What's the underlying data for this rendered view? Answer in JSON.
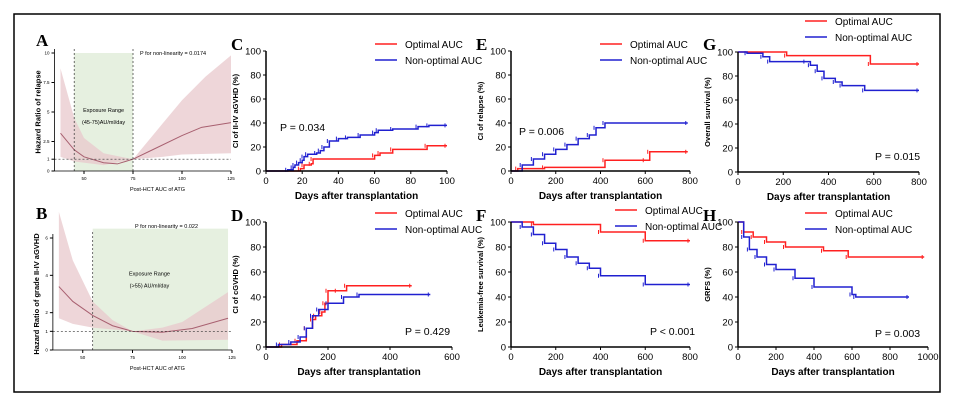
{
  "colors": {
    "optimal": "#ff2020",
    "nonoptimal": "#2020d0",
    "curve": "#a86070",
    "band": "#e8c8cc",
    "exposure": "#e6f0e0"
  },
  "chart_data": [
    {
      "panel": "A",
      "type": "line",
      "ylabel": "Hazard Ratio of relapse",
      "xlabel": "Post-HCT AUC of ATG",
      "annotation": "P for non-linearity = 0.0174",
      "range_title": "Exposure Range",
      "range_text": "(45-75)AU/ml/day",
      "exposure_range": [
        45,
        75
      ],
      "ref_lines_x": [
        45,
        75
      ],
      "ref_line_y": 1,
      "xticks": [
        50,
        75,
        100,
        125
      ],
      "yticks": [
        0,
        1,
        2.5,
        5,
        7.5,
        10
      ],
      "ylim": [
        0,
        10
      ],
      "xlim": [
        25,
        125
      ],
      "hr": [
        [
          38,
          3.2
        ],
        [
          45,
          1.8
        ],
        [
          50,
          1.2
        ],
        [
          60,
          0.7
        ],
        [
          67,
          0.6
        ],
        [
          75,
          1
        ],
        [
          85,
          1.8
        ],
        [
          100,
          3
        ],
        [
          110,
          3.7
        ],
        [
          125,
          4.1
        ]
      ],
      "upper": [
        [
          38,
          8.7
        ],
        [
          45,
          4.5
        ],
        [
          50,
          2.8
        ],
        [
          60,
          1.5
        ],
        [
          75,
          1
        ],
        [
          90,
          4
        ],
        [
          100,
          6
        ],
        [
          112,
          8
        ],
        [
          125,
          9.8
        ]
      ],
      "lower": [
        [
          38,
          1.2
        ],
        [
          45,
          0.8
        ],
        [
          60,
          0.5
        ],
        [
          75,
          1
        ],
        [
          90,
          1.2
        ],
        [
          100,
          1.4
        ],
        [
          125,
          1.5
        ]
      ]
    },
    {
      "panel": "B",
      "type": "line",
      "ylabel": "Hazard Ratio of grade II-IV aGVHD",
      "xlabel": "Post-HCT AUC of ATG",
      "annotation": "P for non-linearity = 0.022",
      "range_title": "Exposure Range",
      "range_text": "(>55) AU/ml/day",
      "exposure_range": [
        55,
        123
      ],
      "ref_lines_x": [
        55
      ],
      "ref_line_y": 1,
      "xticks": [
        50,
        75,
        100,
        125
      ],
      "yticks": [
        0,
        1,
        2,
        4,
        6
      ],
      "ylim": [
        0,
        6
      ],
      "xlim": [
        25,
        125
      ],
      "hr": [
        [
          38,
          3.4
        ],
        [
          45,
          2.6
        ],
        [
          55,
          1.85
        ],
        [
          65,
          1.3
        ],
        [
          75,
          1
        ],
        [
          90,
          0.95
        ],
        [
          105,
          1.15
        ],
        [
          123,
          1.7
        ]
      ],
      "upper": [
        [
          38,
          7.4
        ],
        [
          45,
          4.8
        ],
        [
          55,
          2.6
        ],
        [
          65,
          1.6
        ],
        [
          75,
          1
        ],
        [
          90,
          1.2
        ],
        [
          100,
          1.5
        ],
        [
          123,
          3.1
        ]
      ],
      "lower": [
        [
          38,
          1.7
        ],
        [
          45,
          1.4
        ],
        [
          55,
          1.2
        ],
        [
          75,
          1
        ],
        [
          90,
          0.5
        ],
        [
          123,
          0.55
        ]
      ]
    },
    {
      "panel": "C",
      "type": "line",
      "ylabel": "CI of II-IV aGVHD (%)",
      "xlabel": "Days after transplantation",
      "p_value": "P = 0.034",
      "xticks": [
        0,
        20,
        40,
        60,
        80,
        100
      ],
      "yticks": [
        0,
        20,
        40,
        60,
        80,
        100
      ],
      "xlim": [
        0,
        100
      ],
      "ylim": [
        0,
        100
      ],
      "series": [
        {
          "name": "Optimal AUC",
          "values": [
            [
              0,
              0
            ],
            [
              19,
              2
            ],
            [
              21,
              5
            ],
            [
              25,
              6
            ],
            [
              26,
              10
            ],
            [
              60,
              13
            ],
            [
              63,
              15
            ],
            [
              70,
              18
            ],
            [
              89,
              21
            ],
            [
              100,
              21
            ]
          ]
        },
        {
          "name": "Non-optimal AUC",
          "values": [
            [
              0,
              0
            ],
            [
              12,
              1
            ],
            [
              15,
              3
            ],
            [
              16,
              5
            ],
            [
              18,
              7
            ],
            [
              20,
              9
            ],
            [
              21,
              12
            ],
            [
              23,
              14
            ],
            [
              28,
              15
            ],
            [
              30,
              17
            ],
            [
              32,
              20
            ],
            [
              35,
              25
            ],
            [
              40,
              27
            ],
            [
              45,
              28
            ],
            [
              52,
              30
            ],
            [
              60,
              32
            ],
            [
              62,
              34
            ],
            [
              70,
              35
            ],
            [
              84,
              37
            ],
            [
              90,
              38
            ],
            [
              100,
              38
            ]
          ]
        }
      ]
    },
    {
      "panel": "D",
      "type": "line",
      "ylabel": "CI of cGVHD (%)",
      "xlabel": "Days after transplantation",
      "p_value": "P = 0.429",
      "xticks": [
        0,
        200,
        400,
        600
      ],
      "yticks": [
        0,
        20,
        40,
        60,
        80,
        100
      ],
      "xlim": [
        0,
        600
      ],
      "ylim": [
        0,
        100
      ],
      "series": [
        {
          "name": "Optimal AUC",
          "values": [
            [
              0,
              0
            ],
            [
              50,
              2
            ],
            [
              100,
              5
            ],
            [
              130,
              15
            ],
            [
              150,
              22
            ],
            [
              160,
              25
            ],
            [
              180,
              28
            ],
            [
              190,
              35
            ],
            [
              200,
              45
            ],
            [
              230,
              45
            ],
            [
              260,
              49
            ],
            [
              470,
              49
            ]
          ]
        },
        {
          "name": "Non-optimal AUC",
          "values": [
            [
              0,
              0
            ],
            [
              40,
              2
            ],
            [
              80,
              4
            ],
            [
              110,
              8
            ],
            [
              130,
              15
            ],
            [
              150,
              25
            ],
            [
              170,
              30
            ],
            [
              200,
              35
            ],
            [
              250,
              40
            ],
            [
              300,
              42
            ],
            [
              530,
              42
            ]
          ]
        }
      ]
    },
    {
      "panel": "E",
      "type": "line",
      "ylabel": "CI of relapse (%)",
      "xlabel": "Days after transplantation",
      "p_value": "P = 0.006",
      "xticks": [
        0,
        200,
        400,
        600,
        800
      ],
      "yticks": [
        0,
        20,
        40,
        60,
        80,
        100
      ],
      "xlim": [
        0,
        800
      ],
      "ylim": [
        0,
        100
      ],
      "series": [
        {
          "name": "Optimal AUC",
          "values": [
            [
              0,
              0
            ],
            [
              30,
              2
            ],
            [
              150,
              3
            ],
            [
              420,
              9
            ],
            [
              600,
              9
            ],
            [
              620,
              16
            ],
            [
              790,
              16
            ]
          ]
        },
        {
          "name": "Non-optimal AUC",
          "values": [
            [
              0,
              0
            ],
            [
              50,
              5
            ],
            [
              100,
              10
            ],
            [
              150,
              14
            ],
            [
              200,
              18
            ],
            [
              250,
              22
            ],
            [
              300,
              27
            ],
            [
              350,
              30
            ],
            [
              380,
              36
            ],
            [
              420,
              40
            ],
            [
              790,
              40
            ]
          ]
        }
      ]
    },
    {
      "panel": "F",
      "type": "line",
      "ylabel": "Leukemia-free survival (%)",
      "xlabel": "Days after transplantation",
      "p_value": "P < 0.001",
      "xticks": [
        0,
        200,
        400,
        600,
        800
      ],
      "yticks": [
        0,
        20,
        40,
        60,
        80,
        100
      ],
      "xlim": [
        0,
        800
      ],
      "ylim": [
        0,
        100
      ],
      "series": [
        {
          "name": "Optimal AUC",
          "values": [
            [
              0,
              100
            ],
            [
              100,
              98
            ],
            [
              400,
              92
            ],
            [
              600,
              85
            ],
            [
              800,
              85
            ]
          ]
        },
        {
          "name": "Non-optimal AUC",
          "values": [
            [
              0,
              100
            ],
            [
              50,
              96
            ],
            [
              100,
              90
            ],
            [
              150,
              83
            ],
            [
              200,
              78
            ],
            [
              250,
              72
            ],
            [
              300,
              67
            ],
            [
              350,
              63
            ],
            [
              400,
              57
            ],
            [
              600,
              50
            ],
            [
              800,
              50
            ]
          ]
        }
      ]
    },
    {
      "panel": "G",
      "type": "line",
      "ylabel": "Overall survival (%)",
      "xlabel": "Days after transplantation",
      "p_value": "P = 0.015",
      "xticks": [
        0,
        200,
        400,
        600,
        800
      ],
      "yticks": [
        0,
        20,
        40,
        60,
        80,
        100
      ],
      "xlim": [
        0,
        800
      ],
      "ylim": [
        0,
        100
      ],
      "series": [
        {
          "name": "Optimal AUC",
          "values": [
            [
              0,
              100
            ],
            [
              215,
              97
            ],
            [
              585,
              90
            ],
            [
              800,
              90
            ]
          ]
        },
        {
          "name": "Non-optimal AUC",
          "values": [
            [
              0,
              100
            ],
            [
              40,
              99
            ],
            [
              110,
              96
            ],
            [
              140,
              92
            ],
            [
              300,
              92
            ],
            [
              320,
              89
            ],
            [
              350,
              84
            ],
            [
              380,
              78
            ],
            [
              430,
              75
            ],
            [
              460,
              72
            ],
            [
              560,
              68
            ],
            [
              800,
              68
            ]
          ]
        }
      ]
    },
    {
      "panel": "H",
      "type": "line",
      "ylabel": "GRFS (%)",
      "xlabel": "Days after transplantation",
      "p_value": "P = 0.003",
      "xticks": [
        0,
        200,
        400,
        600,
        800,
        1000
      ],
      "yticks": [
        0,
        20,
        40,
        60,
        80,
        100
      ],
      "xlim": [
        0,
        1000
      ],
      "ylim": [
        0,
        100
      ],
      "series": [
        {
          "name": "Optimal AUC",
          "values": [
            [
              0,
              100
            ],
            [
              30,
              92
            ],
            [
              80,
              88
            ],
            [
              150,
              84
            ],
            [
              250,
              80
            ],
            [
              450,
              77
            ],
            [
              580,
              72
            ],
            [
              980,
              72
            ]
          ]
        },
        {
          "name": "Non-optimal AUC",
          "values": [
            [
              0,
              100
            ],
            [
              30,
              88
            ],
            [
              60,
              78
            ],
            [
              100,
              72
            ],
            [
              150,
              66
            ],
            [
              200,
              62
            ],
            [
              300,
              55
            ],
            [
              400,
              48
            ],
            [
              600,
              42
            ],
            [
              620,
              40
            ],
            [
              900,
              40
            ]
          ]
        }
      ]
    }
  ]
}
